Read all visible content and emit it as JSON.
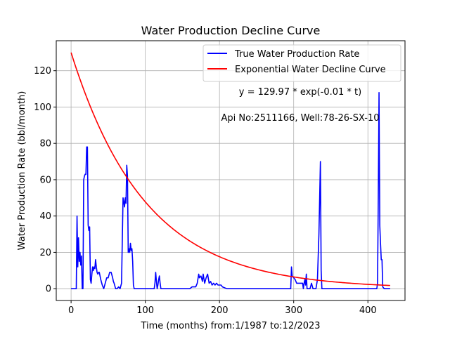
{
  "chart_data": {
    "type": "line",
    "title": "Water Production Decline Curve",
    "xlabel": "Time (months) from:1/1987 to:12/2023",
    "ylabel": "Water Production Rate (bbl/month)",
    "xlim": [
      -20,
      450
    ],
    "ylim": [
      -6.5,
      136.5
    ],
    "xticks": [
      0,
      100,
      200,
      300,
      400
    ],
    "yticks": [
      0,
      20,
      40,
      60,
      80,
      100,
      120
    ],
    "grid": true,
    "legend_position": "top-right",
    "annotations": [
      "y = 129.97 * exp(-0.01 * t)",
      "Api No:2511166, Well:78-26-SX-10"
    ],
    "series": [
      {
        "name": "True Water Production Rate",
        "color": "#0000ff",
        "x": [
          0,
          5,
          7,
          8,
          9,
          10,
          11,
          12,
          13,
          14,
          15,
          16,
          17,
          18,
          19,
          20,
          21,
          22,
          23,
          24,
          25,
          26,
          27,
          28,
          29,
          30,
          31,
          32,
          33,
          34,
          35,
          36,
          37,
          38,
          40,
          42,
          44,
          46,
          48,
          50,
          52,
          54,
          56,
          57,
          58,
          60,
          62,
          64,
          66,
          68,
          70,
          71,
          72,
          73,
          74,
          75,
          76,
          77,
          78,
          79,
          80,
          81,
          82,
          83,
          84,
          85,
          86,
          88,
          90,
          92,
          100,
          110,
          112,
          113,
          114,
          115,
          116,
          117,
          118,
          119,
          120,
          121,
          123,
          125,
          135,
          150,
          160,
          163,
          165,
          168,
          170,
          172,
          173,
          175,
          177,
          178,
          180,
          182,
          184,
          186,
          188,
          190,
          192,
          194,
          196,
          198,
          200,
          202,
          204,
          210,
          230,
          260,
          290,
          295,
          296,
          297,
          298,
          300,
          302,
          304,
          306,
          308,
          310,
          312,
          313,
          314,
          315,
          316,
          317,
          318,
          320,
          322,
          324,
          326,
          328,
          330,
          332,
          334,
          336,
          337,
          338,
          339,
          340,
          341,
          342,
          345,
          380,
          410,
          412,
          413,
          414,
          415,
          416,
          417,
          418,
          419,
          420,
          422,
          425,
          430
        ],
        "values": [
          0,
          0,
          0,
          40,
          12,
          28,
          15,
          20,
          13,
          18,
          0,
          0,
          60,
          62,
          63,
          63,
          78,
          78,
          35,
          32,
          34,
          5,
          3,
          8,
          12,
          10,
          12,
          11,
          16,
          12,
          9,
          8,
          9,
          9,
          5,
          2,
          0,
          3,
          6,
          6,
          9,
          9,
          6,
          4,
          3,
          0,
          0,
          1,
          0,
          3,
          50,
          48,
          45,
          50,
          47,
          68,
          62,
          20,
          22,
          20,
          25,
          21,
          22,
          15,
          2,
          0,
          0,
          0,
          0,
          0,
          0,
          0,
          0,
          3,
          9,
          4,
          0,
          2,
          5,
          7,
          3,
          0,
          0,
          0,
          0,
          0,
          0,
          1,
          1,
          1,
          3,
          8,
          6,
          7,
          4,
          8,
          3,
          6,
          8,
          3,
          4,
          2,
          3,
          2,
          3,
          2,
          2,
          2,
          1,
          0,
          0,
          0,
          0,
          0,
          0,
          12,
          7,
          6,
          5,
          3,
          3,
          3,
          3,
          3,
          0,
          3,
          5,
          2,
          8,
          0,
          0,
          0,
          3,
          0,
          0,
          0,
          5,
          30,
          70,
          10,
          0,
          0,
          0,
          0,
          0,
          0,
          0,
          0,
          0,
          3,
          50,
          108,
          35,
          25,
          16,
          16,
          1,
          0,
          0,
          0
        ]
      },
      {
        "name": "Exponential Water Decline Curve",
        "color": "#ff0000",
        "function": "129.97 * exp(-0.01 * t)",
        "x": [
          0,
          10,
          20,
          30,
          40,
          50,
          60,
          70,
          80,
          90,
          100,
          120,
          140,
          160,
          180,
          200,
          220,
          240,
          260,
          280,
          300,
          320,
          340,
          360,
          380,
          400,
          420,
          430
        ],
        "values": [
          129.97,
          117.6,
          106.41,
          96.28,
          87.12,
          78.83,
          71.33,
          64.54,
          58.4,
          52.84,
          47.81,
          39.15,
          32.05,
          26.24,
          21.48,
          17.59,
          14.4,
          11.79,
          9.65,
          7.9,
          6.47,
          5.3,
          4.34,
          3.55,
          2.91,
          2.38,
          1.95,
          1.76
        ]
      }
    ]
  }
}
